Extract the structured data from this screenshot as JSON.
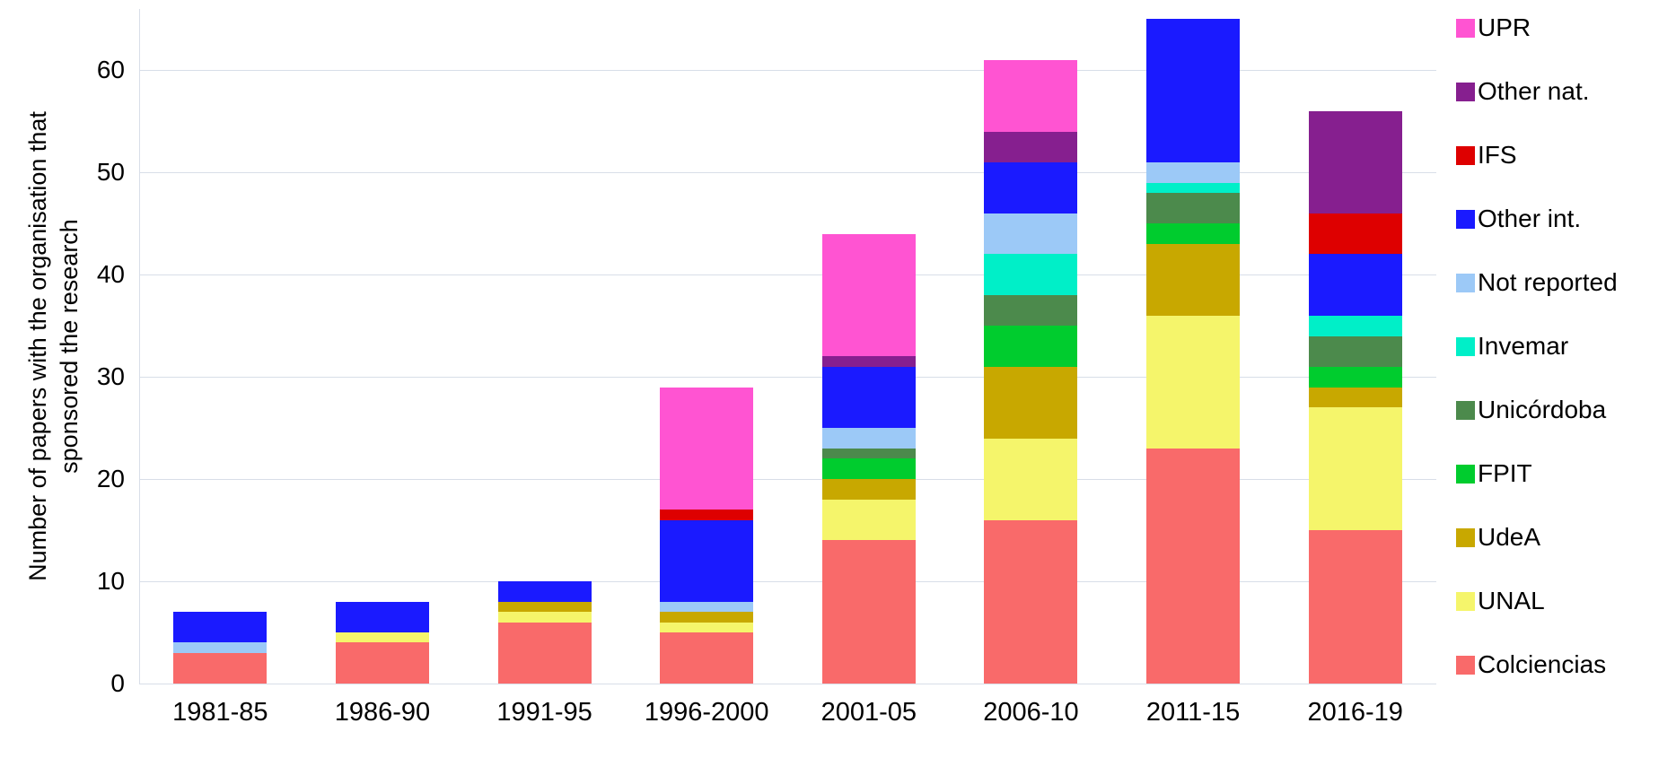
{
  "chart_data": {
    "type": "bar",
    "stacked": true,
    "title": "",
    "ylabel": "Number of papers with the organisation  that\nsponsored the research",
    "xlabel": "",
    "yticks": [
      0,
      10,
      20,
      30,
      40,
      50,
      60
    ],
    "ylim": [
      0,
      66
    ],
    "grid": true,
    "legend_position": "right",
    "categories": [
      "1981-85",
      "1986-90",
      "1991-95",
      "1996-2000",
      "2001-05",
      "2006-10",
      "2011-15",
      "2016-19"
    ],
    "series": [
      {
        "name": "Colciencias",
        "color": "#f96a6a",
        "values": [
          3,
          4,
          6,
          5,
          14,
          16,
          23,
          15
        ]
      },
      {
        "name": "UNAL",
        "color": "#f5f56b",
        "values": [
          0,
          1,
          1,
          1,
          4,
          8,
          13,
          12
        ]
      },
      {
        "name": "UdeA",
        "color": "#c8a800",
        "values": [
          0,
          0,
          1,
          1,
          2,
          7,
          7,
          2
        ]
      },
      {
        "name": "FPIT",
        "color": "#00cc2e",
        "values": [
          0,
          0,
          0,
          0,
          2,
          4,
          2,
          2
        ]
      },
      {
        "name": "Unicórdoba",
        "color": "#4c8a4c",
        "values": [
          0,
          0,
          0,
          0,
          1,
          3,
          3,
          3
        ]
      },
      {
        "name": "Invemar",
        "color": "#00efc8",
        "values": [
          0,
          0,
          0,
          0,
          0,
          4,
          1,
          2
        ]
      },
      {
        "name": "Not reported",
        "color": "#9cc9f7",
        "values": [
          1,
          0,
          0,
          1,
          2,
          4,
          2,
          0
        ]
      },
      {
        "name": "Other int.",
        "color": "#1a1aff",
        "values": [
          3,
          3,
          2,
          8,
          6,
          5,
          14,
          6
        ]
      },
      {
        "name": "IFS",
        "color": "#de0000",
        "values": [
          0,
          0,
          0,
          1,
          0,
          0,
          0,
          4
        ]
      },
      {
        "name": "Other nat.",
        "color": "#861f8f",
        "values": [
          0,
          0,
          0,
          0,
          1,
          3,
          0,
          10
        ]
      },
      {
        "name": "UPR",
        "color": "#ff54d2",
        "values": [
          0,
          0,
          0,
          12,
          12,
          7,
          0,
          0
        ]
      }
    ],
    "legend_order_top_to_bottom": [
      "UPR",
      "Other nat.",
      "IFS",
      "Other int.",
      "Not reported",
      "Invemar",
      "Unicórdoba",
      "FPIT",
      "UdeA",
      "UNAL",
      "Colciencias"
    ],
    "bar_totals": [
      7,
      8,
      10,
      29,
      44,
      61,
      65,
      56
    ]
  }
}
